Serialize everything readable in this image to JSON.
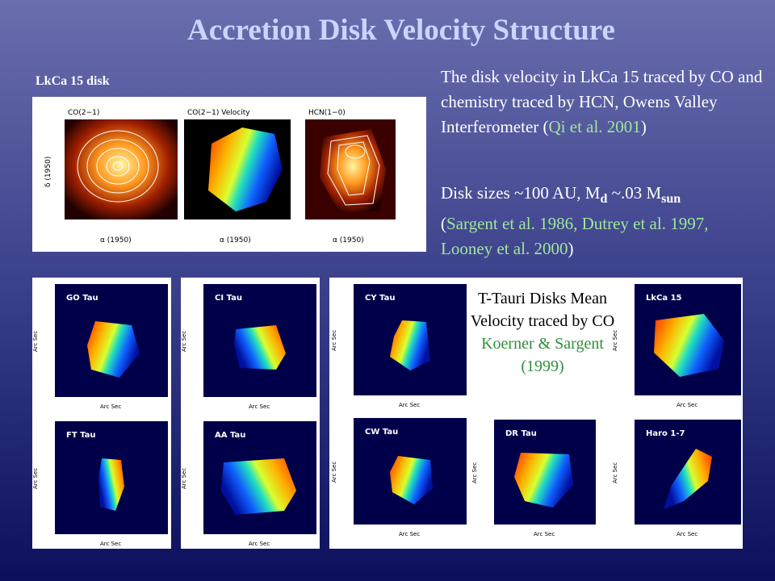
{
  "title": "Accretion Disk Velocity Structure",
  "intro": {
    "heading": "LkCa 15 disk",
    "panels": [
      "CO(2−1)",
      "CO(2−1) Velocity",
      "HCN(1−0)"
    ],
    "x_axis": "α (1950)",
    "y_axis": "δ (1950)"
  },
  "text": {
    "p1": [
      "The disk velocity in LkCa 15 traced by CO and chemistry traced by HCN, Owens Valley Interferometer (",
      "Qi et al. 2001",
      ")"
    ],
    "p2": [
      "Disk sizes ~100 AU, M",
      "d",
      " ~.03 M",
      "sun",
      "(",
      "Sargent et al. 1986, Dutrey et al. 1997, Looney et al. 2000",
      ")"
    ]
  },
  "gallery": {
    "caption": "T-Tauri Disks Mean Velocity traced by CO",
    "citation": "Koerner & Sargent (1999)",
    "axis_label": "Arc Sec",
    "disks": [
      "GO Tau",
      "FT Tau",
      "CI Tau",
      "AA Tau",
      "CY Tau",
      "CW Tau",
      "DR Tau",
      "LkCa 15",
      "Haro 1-7"
    ]
  }
}
